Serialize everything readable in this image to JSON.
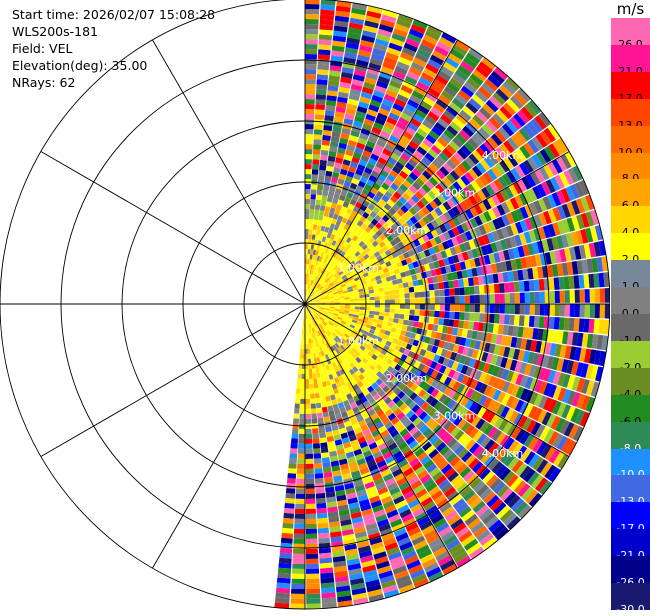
{
  "info": {
    "start_time": "Start time: 2026/02/07 15:08:28",
    "instrument": "WLS200s-181",
    "field": "Field: VEL",
    "elevation": "Elevation(deg): 35.00",
    "nrays": "NRays: 62"
  },
  "range_labels": [
    "1.00km",
    "2.00km",
    "3.00km",
    "4.00km",
    "1.00km",
    "2.00km",
    "3.00km",
    "4.00km"
  ],
  "colorbar": {
    "unit": "m/s",
    "levels": [
      {
        "label": "26.0",
        "color": "#ff69b4"
      },
      {
        "label": "21.0",
        "color": "#ff1493"
      },
      {
        "label": "17.0",
        "color": "#ff0000"
      },
      {
        "label": "13.0",
        "color": "#ff4500"
      },
      {
        "label": "10.0",
        "color": "#ff6a00"
      },
      {
        "label": "8.0",
        "color": "#ff8c00"
      },
      {
        "label": "6.0",
        "color": "#ffa500"
      },
      {
        "label": "4.0",
        "color": "#ffd700"
      },
      {
        "label": "2.0",
        "color": "#ffff00"
      },
      {
        "label": "1.0",
        "color": "#778899"
      },
      {
        "label": "0.0",
        "color": "#808080"
      },
      {
        "label": "-1.0",
        "color": "#696969"
      },
      {
        "label": "-2.0",
        "color": "#9acd32"
      },
      {
        "label": "-4.0",
        "color": "#6b8e23"
      },
      {
        "label": "-6.0",
        "color": "#228b22"
      },
      {
        "label": "-8.0",
        "color": "#2e8b57"
      },
      {
        "label": "-10.0",
        "color": "#1e90ff"
      },
      {
        "label": "-13.0",
        "color": "#4169e1"
      },
      {
        "label": "-17.0",
        "color": "#0000ff"
      },
      {
        "label": "-21.0",
        "color": "#0000cd"
      },
      {
        "label": "-26.0",
        "color": "#00008b"
      },
      {
        "label": "-30.0",
        "color": "#191970"
      }
    ]
  }
}
